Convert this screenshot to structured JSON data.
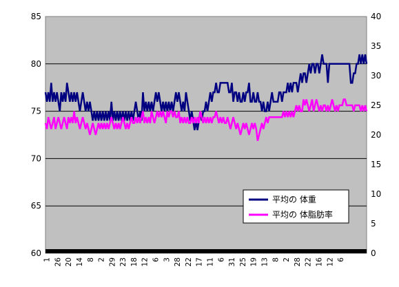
{
  "chart_data": {
    "type": "line",
    "title": "",
    "xlabel": "",
    "ylabel": "",
    "y_left": {
      "min": 60,
      "max": 85,
      "step": 5,
      "ticks": [
        60,
        65,
        70,
        75,
        80,
        85
      ]
    },
    "y_right": {
      "min": 0,
      "max": 40,
      "step": 5,
      "ticks": [
        0,
        5,
        10,
        15,
        20,
        25,
        30,
        35,
        40
      ]
    },
    "x_tick_labels": [
      "1",
      "26",
      "20",
      "14",
      "8",
      "2",
      "29",
      "23",
      "18",
      "12",
      "6",
      "3",
      "28",
      "22",
      "17",
      "11",
      "6",
      "31",
      "25",
      "19",
      "13",
      "8",
      "2",
      "28",
      "22",
      "16",
      "12",
      "6"
    ],
    "grid": "horizontal",
    "plot_background": "#c0c0c0",
    "legend": {
      "placement": "bottom-right"
    },
    "series": [
      {
        "name": "平均の 体重",
        "axis": "left",
        "color": "#000080",
        "values": [
          77,
          76,
          77,
          76,
          78,
          76,
          77,
          76,
          77,
          76,
          75,
          77,
          76,
          77,
          76,
          78,
          77,
          76,
          77,
          76,
          77,
          76,
          77,
          76,
          75,
          76,
          77,
          76,
          75,
          76,
          75,
          76,
          75,
          74,
          75,
          74,
          75,
          74,
          75,
          74,
          75,
          74,
          75,
          74,
          75,
          74,
          76,
          74,
          75,
          74,
          75,
          74,
          75,
          74,
          75,
          74,
          75,
          74,
          75,
          74,
          75,
          74,
          75,
          76,
          75,
          74,
          75,
          74,
          77,
          75,
          76,
          75,
          76,
          75,
          76,
          75,
          76,
          77,
          76,
          77,
          76,
          75,
          76,
          75,
          76,
          75,
          76,
          75,
          76,
          75,
          76,
          77,
          76,
          77,
          76,
          75,
          76,
          75,
          77,
          76,
          75,
          74,
          75,
          74,
          73,
          74,
          73,
          74,
          75,
          74,
          75,
          75,
          76,
          75,
          76,
          77,
          76,
          77,
          77,
          78,
          77,
          77,
          78,
          78,
          78,
          78,
          78,
          78,
          77,
          77,
          78,
          76,
          77,
          77,
          76,
          77,
          76,
          76,
          77,
          76,
          77,
          77,
          78,
          76,
          76,
          77,
          76,
          76,
          77,
          76,
          76,
          75,
          76,
          75,
          75,
          76,
          75,
          76,
          77,
          76,
          76,
          76,
          76,
          77,
          77,
          76,
          77,
          77,
          77,
          78,
          77,
          78,
          77,
          78,
          78,
          78,
          77,
          78,
          79,
          78,
          79,
          79,
          78,
          79,
          80,
          79,
          80,
          80,
          79,
          80,
          80,
          79,
          80,
          81,
          80,
          80,
          80,
          78,
          80,
          80,
          80,
          80,
          80,
          80,
          80,
          80,
          80,
          80,
          80,
          80,
          80,
          80,
          80,
          78,
          78,
          79,
          79,
          80,
          80,
          81,
          80,
          81,
          80,
          81,
          80
        ],
        "note_resolution": "approximate daily samples read from chart"
      },
      {
        "name": "平均の 体脂肪率",
        "axis": "right",
        "color": "#ff00ff",
        "values": [
          22,
          21,
          23,
          22,
          21,
          22,
          23,
          21,
          22,
          23,
          22,
          21,
          22,
          23,
          22,
          21,
          23,
          22,
          23,
          22,
          24,
          22,
          23,
          22,
          21,
          22,
          23,
          22,
          21,
          22,
          21,
          20,
          21,
          22,
          21,
          20,
          21,
          22,
          21,
          22,
          21,
          22,
          21,
          22,
          21,
          22,
          23,
          22,
          21,
          22,
          21,
          22,
          21,
          22,
          23,
          22,
          21,
          22,
          21,
          22,
          23,
          22,
          22,
          23,
          22,
          23,
          22,
          23,
          24,
          22,
          23,
          22,
          23,
          22,
          24,
          23,
          22,
          23,
          24,
          23,
          24,
          23,
          24,
          23,
          22,
          24,
          23,
          24,
          24,
          23,
          24,
          23,
          23,
          24,
          22,
          23,
          22,
          23,
          22,
          23,
          22,
          22,
          23,
          22,
          23,
          22,
          23,
          22,
          24,
          23,
          22,
          23,
          22,
          23,
          22,
          23,
          22,
          23,
          23,
          24,
          23,
          22,
          23,
          22,
          23,
          22,
          22,
          23,
          22,
          21,
          22,
          23,
          22,
          21,
          22,
          21,
          20,
          21,
          22,
          21,
          22,
          21,
          20,
          21,
          22,
          21,
          22,
          21,
          19,
          20,
          21,
          22,
          21,
          22,
          23,
          22,
          23,
          23,
          23,
          23,
          23,
          23,
          23,
          23,
          23,
          23,
          24,
          23,
          24,
          23,
          24,
          23,
          24,
          23,
          24,
          25,
          24,
          25,
          24,
          24,
          26,
          25,
          26,
          25,
          24,
          25,
          26,
          24,
          25,
          26,
          25,
          24,
          25,
          24,
          25,
          25,
          24,
          25,
          24,
          25,
          26,
          25,
          24,
          25,
          24,
          25,
          25,
          25,
          26,
          26,
          25,
          25,
          25,
          25,
          25,
          24,
          25,
          25,
          25,
          25,
          24,
          25,
          24,
          25,
          24
        ]
      }
    ]
  }
}
